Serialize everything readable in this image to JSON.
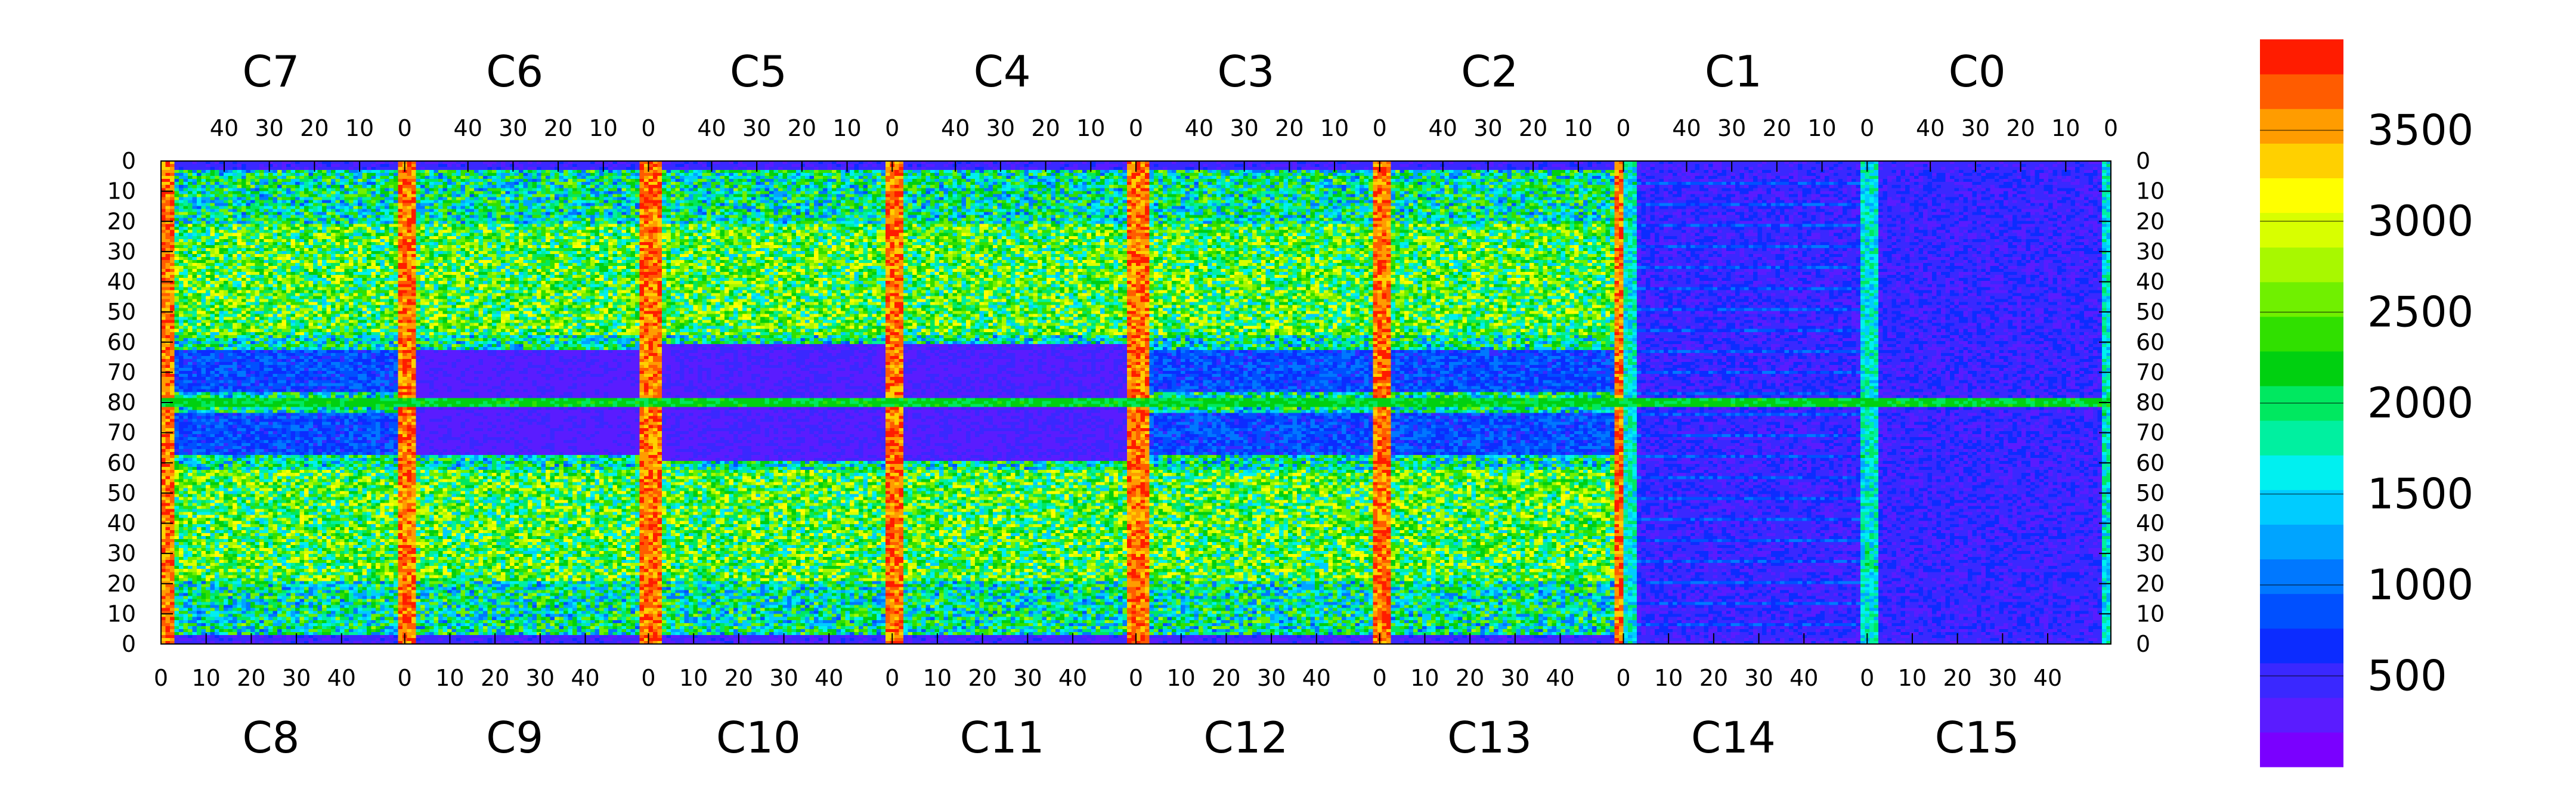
{
  "chart_data": {
    "type": "heatmap",
    "title": "",
    "xlabel": "",
    "ylabel": "",
    "top_chips": [
      "C7",
      "C6",
      "C5",
      "C4",
      "C3",
      "C2",
      "C1",
      "C0"
    ],
    "bottom_chips": [
      "C8",
      "C9",
      "C10",
      "C11",
      "C12",
      "C13",
      "C14",
      "C15"
    ],
    "top_tick_labels": [
      "40",
      "30",
      "20",
      "10",
      "0"
    ],
    "bottom_tick_labels": [
      "0",
      "10",
      "20",
      "30",
      "40"
    ],
    "y_tick_labels": [
      "0",
      "10",
      "20",
      "30",
      "40",
      "50",
      "60",
      "70",
      "80",
      "70",
      "60",
      "50",
      "40",
      "30",
      "20",
      "10",
      "0"
    ],
    "colorbar": {
      "zrange": [
        0,
        4000
      ],
      "tick_labels": [
        "500",
        "1000",
        "1500",
        "2000",
        "2500",
        "3000",
        "3500"
      ],
      "tick_values": [
        500,
        1000,
        1500,
        2000,
        2500,
        3000,
        3500
      ],
      "colors": [
        "#7a00ff",
        "#5a1cff",
        "#3a28ff",
        "#0c2cff",
        "#0050ff",
        "#0078ff",
        "#00a4ff",
        "#00ccff",
        "#00f0f0",
        "#00f0a0",
        "#00e860",
        "#00d010",
        "#30e000",
        "#70f000",
        "#a8f800",
        "#d8ff00",
        "#ffff00",
        "#ffd000",
        "#ff9c00",
        "#ff5c00",
        "#ff1c00"
      ]
    }
  }
}
